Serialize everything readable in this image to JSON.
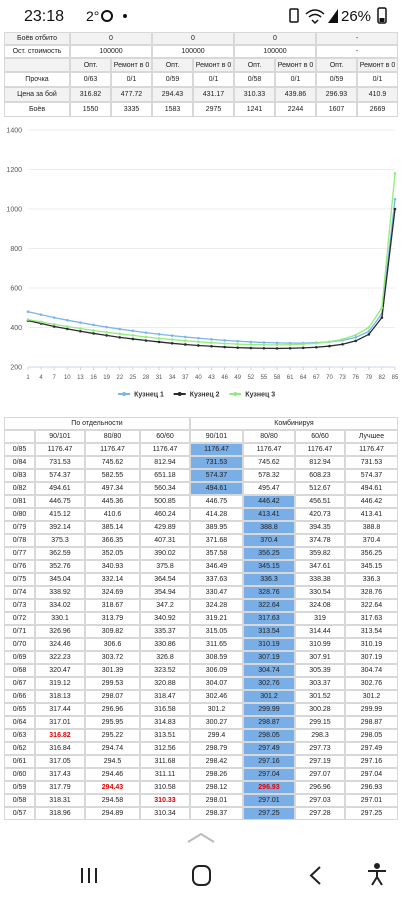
{
  "status_bar": {
    "time": "23:18",
    "temperature": "2°",
    "battery": "26%"
  },
  "summary": {
    "top_rows": [
      {
        "label": "Боёв отбито",
        "cells": [
          "0",
          "0",
          "0",
          "-"
        ]
      },
      {
        "label": "Ост. стоимость",
        "cells": [
          "100000",
          "100000",
          "100000",
          "-"
        ]
      }
    ],
    "header": [
      "Опт.",
      "Ремонт в 0",
      "Опт.",
      "Ремонт в 0",
      "Опт.",
      "Ремонт в 0",
      "Опт.",
      "Ремонт в 0"
    ],
    "stat_rows": [
      {
        "label": "Прочка",
        "cells": [
          "0/63",
          "0/1",
          "0/59",
          "0/1",
          "0/58",
          "0/1",
          "0/59",
          "0/1"
        ]
      },
      {
        "label": "Цена за бой",
        "cells": [
          316.82,
          477.72,
          294.43,
          431.17,
          310.33,
          439.86,
          296.93,
          410.9
        ]
      },
      {
        "label": "Боёв",
        "cells": [
          1550,
          3335,
          1583,
          2975,
          1241,
          2244,
          1607,
          2669
        ]
      }
    ]
  },
  "chart_data": {
    "type": "line",
    "x": [
      1,
      4,
      7,
      10,
      13,
      16,
      19,
      22,
      25,
      28,
      31,
      34,
      37,
      40,
      43,
      46,
      49,
      52,
      55,
      58,
      61,
      64,
      67,
      70,
      73,
      76,
      79,
      82,
      85
    ],
    "xlim": [
      1,
      85
    ],
    "xticks": [
      1,
      4,
      7,
      10,
      13,
      16,
      19,
      22,
      25,
      28,
      31,
      34,
      37,
      40,
      43,
      46,
      49,
      52,
      55,
      58,
      61,
      64,
      67,
      70,
      73,
      76,
      79,
      82,
      85
    ],
    "ylim": [
      200,
      1400
    ],
    "yticks": [
      200,
      400,
      600,
      800,
      1000,
      1200,
      1400
    ],
    "grid": true,
    "legend": "bottom",
    "series": [
      {
        "name": "Кузнец 1",
        "color": "#7cb5ec",
        "values": [
          480,
          465,
          450,
          437,
          425,
          413,
          402,
          392,
          383,
          374,
          366,
          359,
          352,
          346,
          340,
          335,
          331,
          327,
          324,
          322,
          321,
          321,
          323,
          327,
          335,
          350,
          380,
          470,
          1050
        ]
      },
      {
        "name": "Кузнец 2",
        "color": "#2b2b2b",
        "values": [
          435,
          420,
          405,
          393,
          381,
          370,
          360,
          350,
          342,
          334,
          327,
          320,
          314,
          309,
          305,
          301,
          298,
          296,
          295,
          294,
          295,
          297,
          300,
          306,
          315,
          332,
          365,
          450,
          1000
        ]
      },
      {
        "name": "Кузнец 3",
        "color": "#90ed7d",
        "values": [
          440,
          428,
          416,
          405,
          395,
          385,
          376,
          368,
          360,
          352,
          345,
          339,
          333,
          328,
          323,
          319,
          316,
          314,
          312,
          312,
          313,
          316,
          320,
          328,
          340,
          362,
          400,
          500,
          1180
        ]
      }
    ]
  },
  "comparison": {
    "groups": [
      "По отдельности",
      "Комбинируя"
    ],
    "columns": [
      "90/101",
      "80/80",
      "60/60",
      "90/101",
      "80/80",
      "60/60",
      "Лучшее"
    ],
    "rows": [
      {
        "label": "0/85",
        "cells": [
          1176.47,
          1176.47,
          1176.47,
          1176.47,
          1176.47,
          1176.47,
          1176.47
        ],
        "highlight": 3
      },
      {
        "label": "0/84",
        "cells": [
          731.53,
          745.62,
          812.94,
          731.53,
          745.62,
          812.94,
          731.53
        ],
        "highlight": 3
      },
      {
        "label": "0/83",
        "cells": [
          574.37,
          582.55,
          651.18,
          574.37,
          578.32,
          608.23,
          574.37
        ],
        "highlight": 3
      },
      {
        "label": "0/82",
        "cells": [
          494.61,
          497.34,
          560.34,
          494.61,
          495.47,
          512.67,
          494.61
        ],
        "highlight": 3
      },
      {
        "label": "0/81",
        "cells": [
          446.75,
          445.36,
          500.85,
          446.75,
          446.42,
          456.51,
          446.42
        ],
        "highlight": 4
      },
      {
        "label": "0/80",
        "cells": [
          415.12,
          410.6,
          460.24,
          414.28,
          413.41,
          420.73,
          413.41
        ],
        "highlight": 4
      },
      {
        "label": "0/79",
        "cells": [
          392.14,
          385.14,
          429.89,
          389.95,
          388.8,
          394.35,
          388.8
        ],
        "highlight": 4
      },
      {
        "label": "0/78",
        "cells": [
          375.3,
          366.35,
          407.31,
          371.68,
          370.4,
          374.78,
          370.4
        ],
        "highlight": 4
      },
      {
        "label": "0/77",
        "cells": [
          362.59,
          352.05,
          390.02,
          357.58,
          356.25,
          359.82,
          356.25
        ],
        "highlight": 4
      },
      {
        "label": "0/76",
        "cells": [
          352.76,
          340.93,
          375.8,
          346.49,
          345.15,
          347.61,
          345.15
        ],
        "highlight": 4
      },
      {
        "label": "0/75",
        "cells": [
          345.04,
          332.14,
          364.54,
          337.63,
          336.3,
          338.38,
          336.3
        ],
        "highlight": 4
      },
      {
        "label": "0/74",
        "cells": [
          338.92,
          324.69,
          354.94,
          330.47,
          328.76,
          330.54,
          328.76
        ],
        "highlight": 4
      },
      {
        "label": "0/73",
        "cells": [
          334.02,
          318.67,
          347.2,
          324.28,
          322.64,
          324.08,
          322.64
        ],
        "highlight": 4
      },
      {
        "label": "0/72",
        "cells": [
          330.1,
          313.79,
          340.92,
          319.21,
          317.63,
          319,
          317.63
        ],
        "highlight": 4
      },
      {
        "label": "0/71",
        "cells": [
          326.96,
          309.82,
          335.37,
          315.05,
          313.54,
          314.44,
          313.54
        ],
        "highlight": 4
      },
      {
        "label": "0/70",
        "cells": [
          324.46,
          306.6,
          330.86,
          311.65,
          310.19,
          310.99,
          310.19
        ],
        "highlight": 4
      },
      {
        "label": "0/69",
        "cells": [
          322.23,
          303.72,
          326.8,
          308.59,
          307.19,
          307.91,
          307.19
        ],
        "highlight": 4
      },
      {
        "label": "0/68",
        "cells": [
          320.47,
          301.39,
          323.52,
          306.09,
          304.74,
          305.39,
          304.74
        ],
        "highlight": 4
      },
      {
        "label": "0/67",
        "cells": [
          319.12,
          299.53,
          320.88,
          304.07,
          302.76,
          303.37,
          302.76
        ],
        "highlight": 4
      },
      {
        "label": "0/66",
        "cells": [
          318.13,
          298.07,
          318.47,
          302.46,
          301.2,
          301.52,
          301.2
        ],
        "highlight": 4
      },
      {
        "label": "0/65",
        "cells": [
          317.44,
          296.96,
          316.58,
          301.2,
          299.99,
          300.28,
          299.99
        ],
        "highlight": 4
      },
      {
        "label": "0/64",
        "cells": [
          317.01,
          295.95,
          314.83,
          300.27,
          298.87,
          299.15,
          298.87
        ],
        "highlight": 4
      },
      {
        "label": "0/63",
        "cells": [
          316.82,
          295.22,
          313.51,
          299.4,
          298.05,
          298.3,
          298.05
        ],
        "highlight": 4,
        "red": [
          0
        ]
      },
      {
        "label": "0/62",
        "cells": [
          316.84,
          294.74,
          312.56,
          298.79,
          297.49,
          297.73,
          297.49
        ],
        "highlight": 4
      },
      {
        "label": "0/61",
        "cells": [
          317.05,
          294.5,
          311.68,
          298.42,
          297.16,
          297.19,
          297.16
        ],
        "highlight": 4
      },
      {
        "label": "0/60",
        "cells": [
          317.43,
          294.46,
          311.11,
          298.26,
          297.04,
          297.07,
          297.04
        ],
        "highlight": 4
      },
      {
        "label": "0/59",
        "cells": [
          317.79,
          294.43,
          310.58,
          298.12,
          296.93,
          296.96,
          296.93
        ],
        "highlight": 4,
        "red": [
          1,
          4
        ]
      },
      {
        "label": "0/58",
        "cells": [
          318.31,
          294.58,
          310.33,
          298.01,
          297.01,
          297.03,
          297.01
        ],
        "highlight": 4,
        "red": [
          2
        ]
      },
      {
        "label": "0/57",
        "cells": [
          318.96,
          294.89,
          310.34,
          298.37,
          297.25,
          297.28,
          297.25
        ],
        "highlight": 4
      }
    ]
  }
}
